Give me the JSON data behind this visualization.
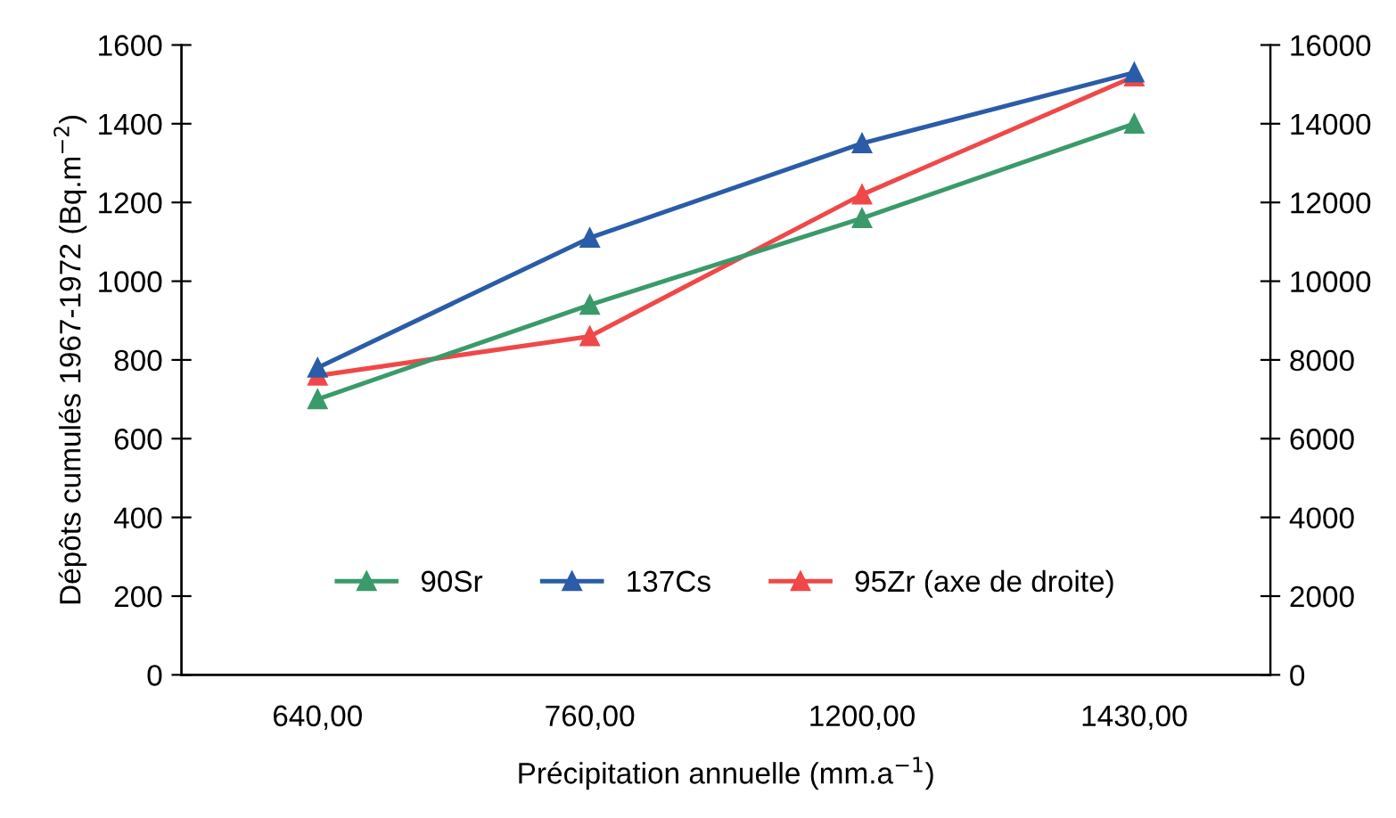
{
  "chart_data": {
    "type": "line",
    "xlabel": "Précipitation annuelle (mm.a$^{−1}$)",
    "ylabel": "Dépôts cumulés 1967-1972 (Bq.m$^{−2}$)",
    "categories": [
      "640,00",
      "760,00",
      "1200,00",
      "1430,00"
    ],
    "series": [
      {
        "name": "90Sr",
        "color": "#3a9a6a",
        "values": [
          700,
          940,
          1160,
          1400
        ]
      },
      {
        "name": "137Cs",
        "color": "#2a5ca8",
        "values": [
          780,
          1110,
          1350,
          1530
        ]
      },
      {
        "name": "95Zr (axe de droite)",
        "color": "#f04848",
        "values": [
          7600,
          8600,
          12200,
          15200
        ],
        "axis": "y2"
      }
    ],
    "ylim": [
      0,
      1600
    ],
    "yticks": [
      0,
      200,
      400,
      600,
      800,
      1000,
      1200,
      1400,
      1600
    ],
    "y2lim": [
      0,
      16000
    ],
    "y2ticks": [
      0,
      2000,
      4000,
      6000,
      8000,
      10000,
      12000,
      14000,
      16000
    ],
    "marker": "triangle",
    "line_style": "solid",
    "grid": false,
    "legend": "bottom"
  }
}
